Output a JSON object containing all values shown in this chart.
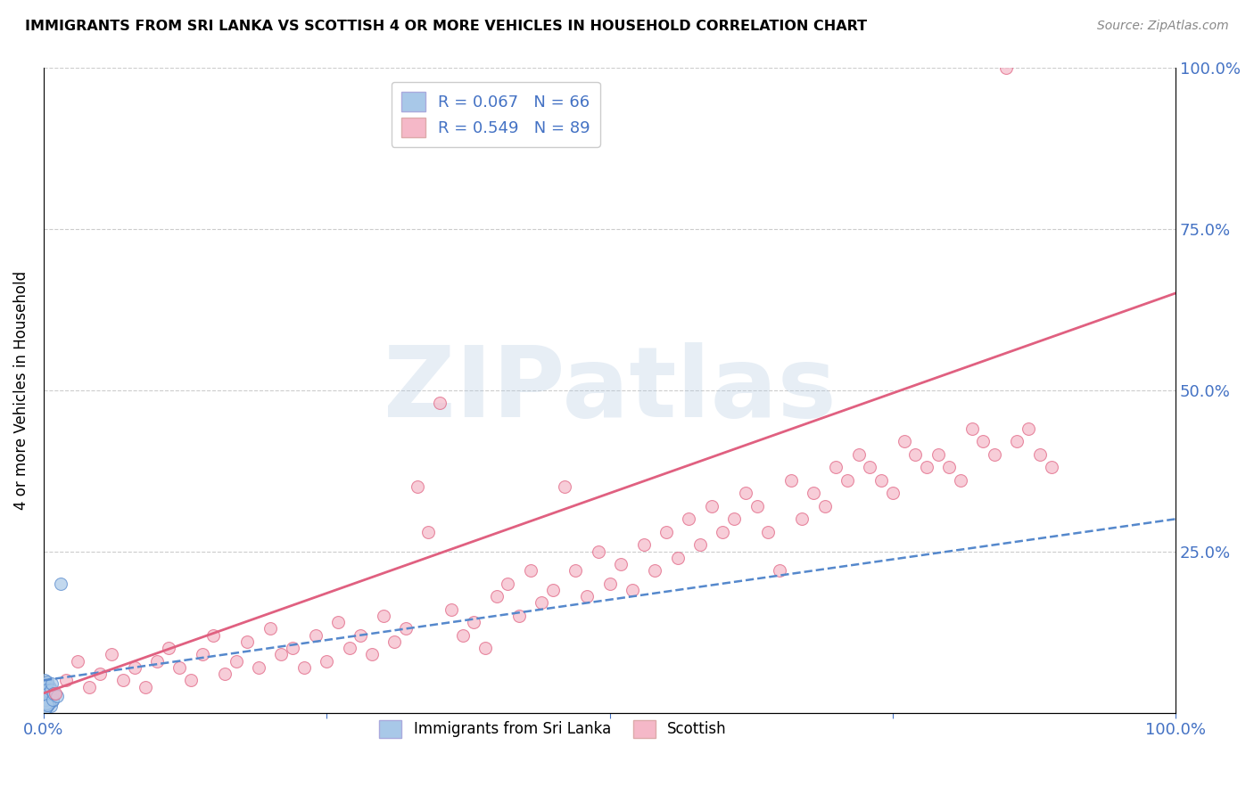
{
  "title": "IMMIGRANTS FROM SRI LANKA VS SCOTTISH 4 OR MORE VEHICLES IN HOUSEHOLD CORRELATION CHART",
  "source": "Source: ZipAtlas.com",
  "ylabel_left": "4 or more Vehicles in Household",
  "legend_label1": "Immigrants from Sri Lanka",
  "legend_label2": "Scottish",
  "r1": 0.067,
  "n1": 66,
  "r2": 0.549,
  "n2": 89,
  "color_blue_fill": "#a8c8e8",
  "color_blue_edge": "#5588cc",
  "color_pink_fill": "#f5b8c8",
  "color_pink_edge": "#e06080",
  "color_blue_line": "#5588cc",
  "color_pink_line": "#e06080",
  "watermark_color": "#b0c8e0",
  "watermark_alpha": 0.3,
  "xlim": [
    0,
    100
  ],
  "ylim": [
    0,
    100
  ],
  "blue_x": [
    0.05,
    0.08,
    0.1,
    0.12,
    0.15,
    0.18,
    0.2,
    0.22,
    0.25,
    0.28,
    0.3,
    0.35,
    0.4,
    0.45,
    0.5,
    0.55,
    0.6,
    0.65,
    0.7,
    0.8,
    0.1,
    0.15,
    0.2,
    0.25,
    0.3,
    0.35,
    0.4,
    0.45,
    0.5,
    0.55,
    0.08,
    0.12,
    0.18,
    0.22,
    0.28,
    0.32,
    0.38,
    0.42,
    0.48,
    0.52,
    0.05,
    0.1,
    0.15,
    0.2,
    0.25,
    0.3,
    0.35,
    0.4,
    0.45,
    0.5,
    0.05,
    0.08,
    0.1,
    0.12,
    0.15,
    0.18,
    0.2,
    0.22,
    0.25,
    0.28,
    0.6,
    0.7,
    0.8,
    0.9,
    1.2,
    1.5
  ],
  "blue_y": [
    1.5,
    2.0,
    1.0,
    2.5,
    1.8,
    3.0,
    2.2,
    1.5,
    2.8,
    1.2,
    2.5,
    1.8,
    2.0,
    3.2,
    1.5,
    2.8,
    1.0,
    2.5,
    3.0,
    1.8,
    4.0,
    2.5,
    3.5,
    1.5,
    4.5,
    2.0,
    3.0,
    1.8,
    2.5,
    4.0,
    1.2,
    3.8,
    2.2,
    4.2,
    1.0,
    3.5,
    2.8,
    1.5,
    3.0,
    2.0,
    5.0,
    1.5,
    4.0,
    2.5,
    3.5,
    1.8,
    4.8,
    2.0,
    3.2,
    1.5,
    0.5,
    1.8,
    2.5,
    3.2,
    0.8,
    2.0,
    1.5,
    3.5,
    2.8,
    1.2,
    3.5,
    4.5,
    2.0,
    3.0,
    2.5,
    20.0
  ],
  "pink_x": [
    1.0,
    2.0,
    3.0,
    4.0,
    5.0,
    6.0,
    7.0,
    8.0,
    9.0,
    10.0,
    11.0,
    12.0,
    13.0,
    14.0,
    15.0,
    16.0,
    17.0,
    18.0,
    19.0,
    20.0,
    21.0,
    22.0,
    23.0,
    24.0,
    25.0,
    26.0,
    27.0,
    28.0,
    29.0,
    30.0,
    31.0,
    32.0,
    33.0,
    34.0,
    35.0,
    36.0,
    37.0,
    38.0,
    39.0,
    40.0,
    41.0,
    42.0,
    43.0,
    44.0,
    45.0,
    46.0,
    47.0,
    48.0,
    49.0,
    50.0,
    51.0,
    52.0,
    53.0,
    54.0,
    55.0,
    56.0,
    57.0,
    58.0,
    59.0,
    60.0,
    61.0,
    62.0,
    63.0,
    64.0,
    65.0,
    66.0,
    67.0,
    68.0,
    69.0,
    70.0,
    71.0,
    72.0,
    73.0,
    74.0,
    75.0,
    76.0,
    77.0,
    78.0,
    79.0,
    80.0,
    81.0,
    82.0,
    83.0,
    84.0,
    85.0,
    86.0,
    87.0,
    88.0,
    89.0
  ],
  "pink_y": [
    3.0,
    5.0,
    8.0,
    4.0,
    6.0,
    9.0,
    5.0,
    7.0,
    4.0,
    8.0,
    10.0,
    7.0,
    5.0,
    9.0,
    12.0,
    6.0,
    8.0,
    11.0,
    7.0,
    13.0,
    9.0,
    10.0,
    7.0,
    12.0,
    8.0,
    14.0,
    10.0,
    12.0,
    9.0,
    15.0,
    11.0,
    13.0,
    35.0,
    28.0,
    48.0,
    16.0,
    12.0,
    14.0,
    10.0,
    18.0,
    20.0,
    15.0,
    22.0,
    17.0,
    19.0,
    35.0,
    22.0,
    18.0,
    25.0,
    20.0,
    23.0,
    19.0,
    26.0,
    22.0,
    28.0,
    24.0,
    30.0,
    26.0,
    32.0,
    28.0,
    30.0,
    34.0,
    32.0,
    28.0,
    22.0,
    36.0,
    30.0,
    34.0,
    32.0,
    38.0,
    36.0,
    40.0,
    38.0,
    36.0,
    34.0,
    42.0,
    40.0,
    38.0,
    40.0,
    38.0,
    36.0,
    44.0,
    42.0,
    40.0,
    100.0,
    42.0,
    44.0,
    40.0,
    38.0
  ],
  "blue_trend_x": [
    0,
    100
  ],
  "blue_trend_y": [
    5.0,
    30.0
  ],
  "pink_trend_x": [
    0,
    100
  ],
  "pink_trend_y": [
    3.0,
    65.0
  ]
}
